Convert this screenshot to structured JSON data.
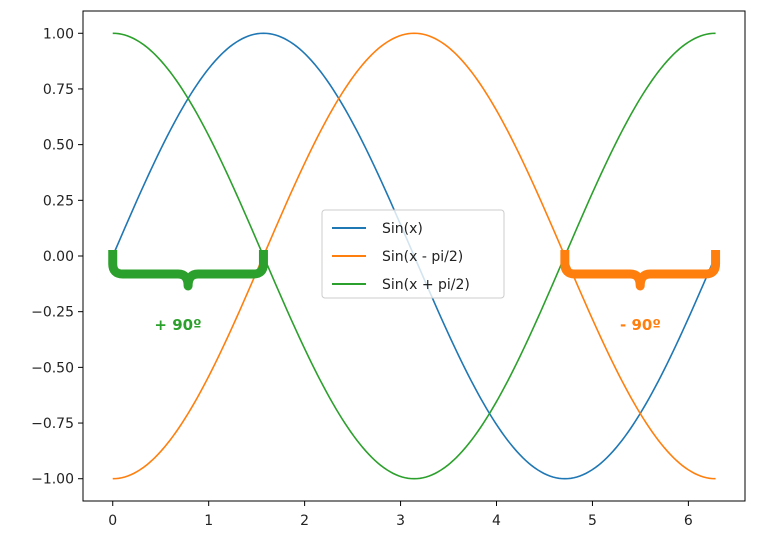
{
  "chart_data": {
    "type": "line",
    "title": "",
    "xlabel": "",
    "ylabel": "",
    "xlim": [
      -0.31,
      6.59
    ],
    "ylim": [
      -1.1,
      1.1
    ],
    "xticks": [
      0,
      1,
      2,
      3,
      4,
      5,
      6
    ],
    "xtick_labels": [
      "0",
      "1",
      "2",
      "3",
      "4",
      "5",
      "6"
    ],
    "yticks": [
      1.0,
      0.75,
      0.5,
      0.25,
      0.0,
      -0.25,
      -0.5,
      -0.75,
      -1.0
    ],
    "ytick_labels": [
      "1.00",
      "0.75",
      "0.50",
      "0.25",
      "0.00",
      "−0.25",
      "−0.50",
      "−0.75",
      "−1.00"
    ],
    "grid": false,
    "legend_position": "center",
    "x_range": [
      0,
      6.2832
    ],
    "series": [
      {
        "name": "Sin(x)",
        "function": "sin(x)",
        "color": "#1f77b4"
      },
      {
        "name": "Sin(x - pi/2)",
        "function": "sin(x - pi/2)",
        "color": "#ff7f0e"
      },
      {
        "name": "Sin(x + pi/2)",
        "function": "sin(x + pi/2)",
        "color": "#2ca02c"
      }
    ],
    "annotations": [
      {
        "text": "+ 90º",
        "x_start": 0.0,
        "x_end": 1.5708,
        "y": 0.0,
        "label_x": 0.68,
        "label_y": -0.31,
        "color": "#2ca02c"
      },
      {
        "text": "- 90º",
        "x_start": 4.7124,
        "x_end": 6.2832,
        "y": 0.0,
        "label_x": 5.5,
        "label_y": -0.31,
        "color": "#ff7f0e"
      }
    ]
  }
}
